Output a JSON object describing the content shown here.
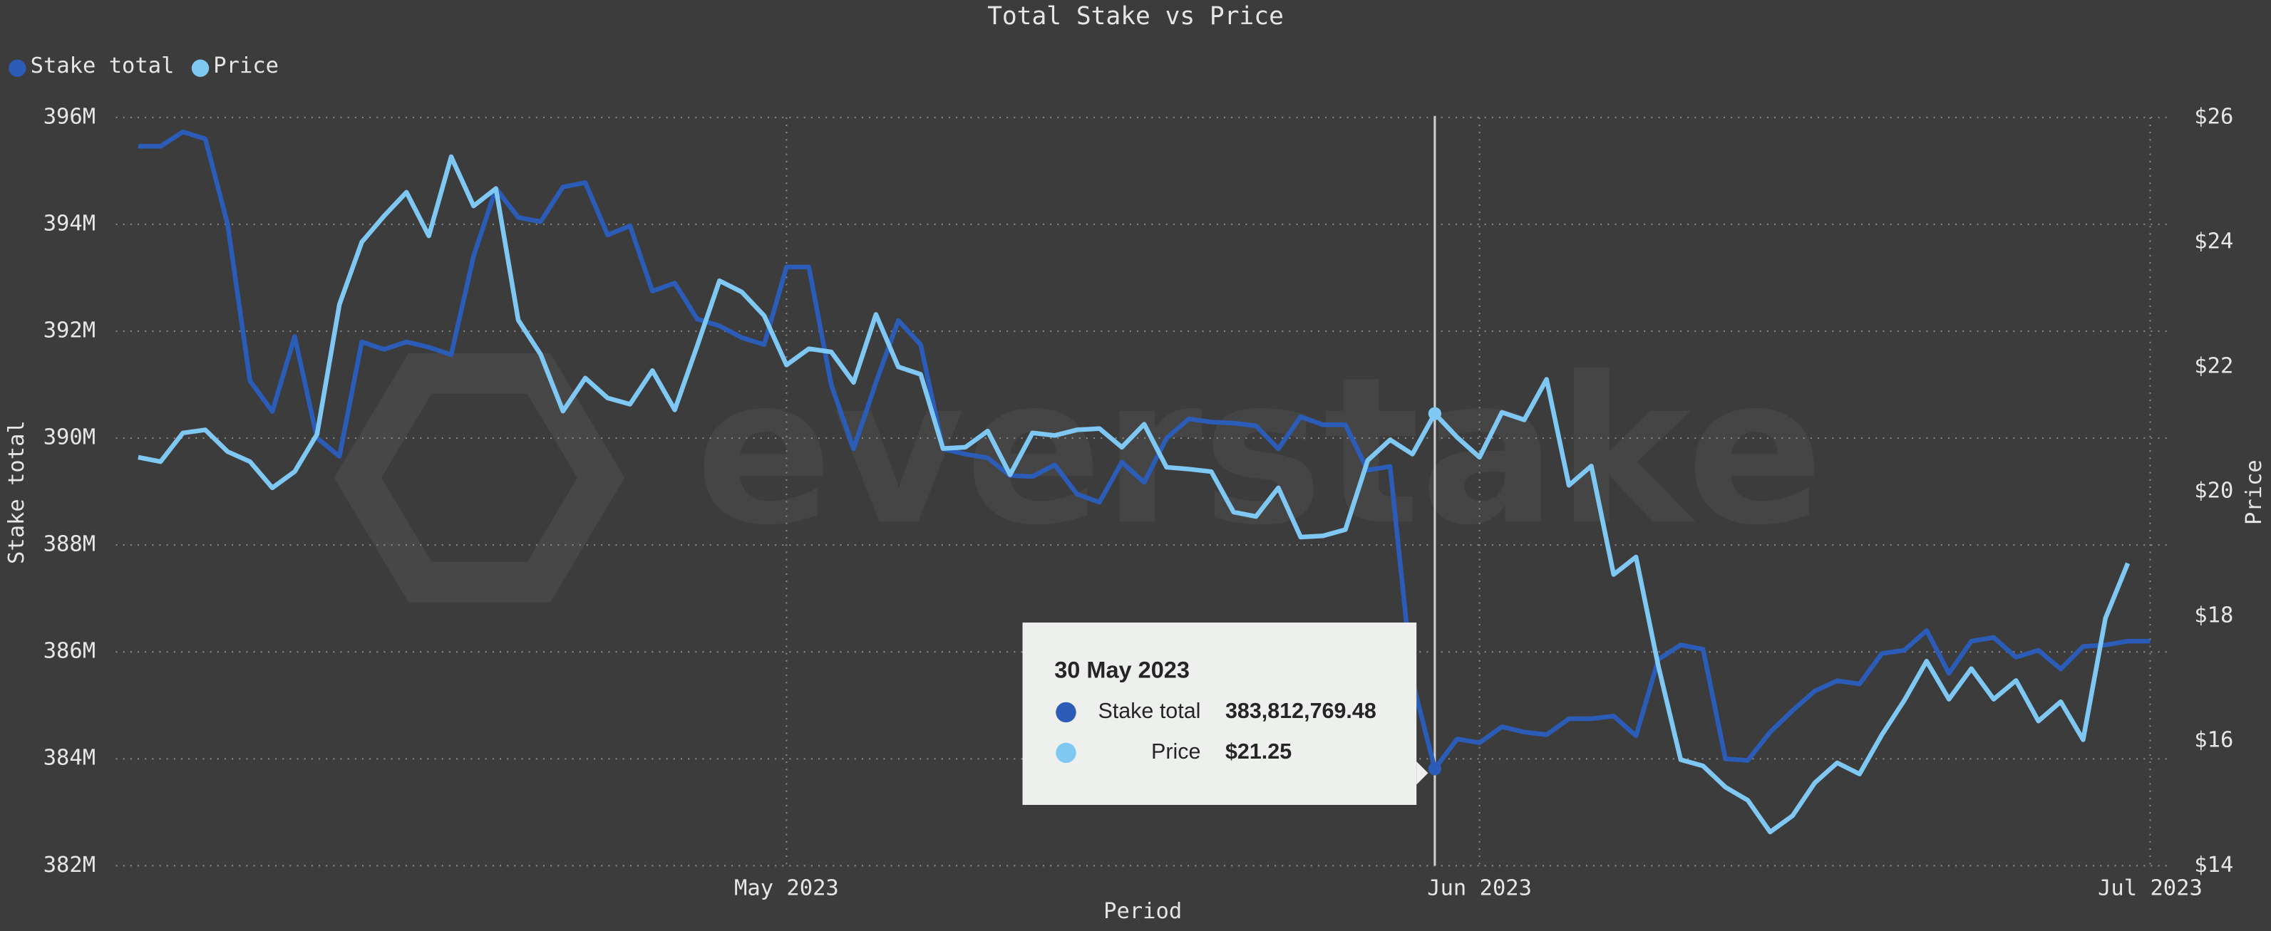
{
  "chart_data": {
    "type": "line",
    "title": "Total Stake vs Price",
    "watermark": "everstake",
    "legend": "top-left",
    "grid": true,
    "xlabel": "Period",
    "ylabel": "Stake total",
    "y2label": "Price",
    "x": [
      "2023-04-02",
      "2023-04-03",
      "2023-04-04",
      "2023-04-05",
      "2023-04-06",
      "2023-04-07",
      "2023-04-08",
      "2023-04-09",
      "2023-04-10",
      "2023-04-11",
      "2023-04-12",
      "2023-04-13",
      "2023-04-14",
      "2023-04-15",
      "2023-04-16",
      "2023-04-17",
      "2023-04-18",
      "2023-04-19",
      "2023-04-20",
      "2023-04-21",
      "2023-04-22",
      "2023-04-23",
      "2023-04-24",
      "2023-04-25",
      "2023-04-26",
      "2023-04-27",
      "2023-04-28",
      "2023-04-29",
      "2023-04-30",
      "2023-05-01",
      "2023-05-02",
      "2023-05-03",
      "2023-05-04",
      "2023-05-05",
      "2023-05-06",
      "2023-05-07",
      "2023-05-08",
      "2023-05-09",
      "2023-05-10",
      "2023-05-11",
      "2023-05-12",
      "2023-05-13",
      "2023-05-14",
      "2023-05-15",
      "2023-05-16",
      "2023-05-17",
      "2023-05-18",
      "2023-05-19",
      "2023-05-20",
      "2023-05-21",
      "2023-05-22",
      "2023-05-23",
      "2023-05-24",
      "2023-05-25",
      "2023-05-26",
      "2023-05-27",
      "2023-05-28",
      "2023-05-29",
      "2023-05-30",
      "2023-05-31",
      "2023-06-01",
      "2023-06-02",
      "2023-06-03",
      "2023-06-04",
      "2023-06-05",
      "2023-06-06",
      "2023-06-07",
      "2023-06-08",
      "2023-06-09",
      "2023-06-10",
      "2023-06-11",
      "2023-06-12",
      "2023-06-13",
      "2023-06-14",
      "2023-06-15",
      "2023-06-16",
      "2023-06-17",
      "2023-06-18",
      "2023-06-19",
      "2023-06-20",
      "2023-06-21",
      "2023-06-22",
      "2023-06-23",
      "2023-06-24",
      "2023-06-25",
      "2023-06-26",
      "2023-06-27",
      "2023-06-28",
      "2023-06-29",
      "2023-06-30",
      "2023-07-01"
    ],
    "xlim": [
      "2023-04-01",
      "2023-07-02"
    ],
    "xticks": [
      {
        "value": "2023-05-01",
        "label": "May 2023"
      },
      {
        "value": "2023-06-01",
        "label": "Jun 2023"
      },
      {
        "value": "2023-07-01",
        "label": "Jul 2023"
      }
    ],
    "ylim": [
      382000000,
      396000000
    ],
    "yticks": [
      {
        "value": 382000000,
        "label": "382M"
      },
      {
        "value": 384000000,
        "label": "384M"
      },
      {
        "value": 386000000,
        "label": "386M"
      },
      {
        "value": 388000000,
        "label": "388M"
      },
      {
        "value": 390000000,
        "label": "390M"
      },
      {
        "value": 392000000,
        "label": "392M"
      },
      {
        "value": 394000000,
        "label": "394M"
      },
      {
        "value": 396000000,
        "label": "396M"
      }
    ],
    "y2lim": [
      14,
      26
    ],
    "y2ticks": [
      {
        "value": 14,
        "label": "$14"
      },
      {
        "value": 16,
        "label": "$16"
      },
      {
        "value": 18,
        "label": "$18"
      },
      {
        "value": 20,
        "label": "$20"
      },
      {
        "value": 22,
        "label": "$22"
      },
      {
        "value": 24,
        "label": "$24"
      },
      {
        "value": 26,
        "label": "$26"
      }
    ],
    "series": [
      {
        "name": "Stake total",
        "color": "#2b5cb8",
        "axis": "y",
        "values": [
          395460000,
          395460000,
          395730000,
          395600000,
          394000000,
          391070000,
          390500000,
          391900000,
          390000000,
          389660000,
          391800000,
          391660000,
          391800000,
          391700000,
          391560000,
          393400000,
          394670000,
          394130000,
          394050000,
          394700000,
          394780000,
          393800000,
          393970000,
          392750000,
          392900000,
          392230000,
          392100000,
          391880000,
          391750000,
          393200000,
          393200000,
          391000000,
          389800000,
          391040000,
          392200000,
          391750000,
          389800000,
          389700000,
          389630000,
          389300000,
          389280000,
          389500000,
          388950000,
          388800000,
          389550000,
          389170000,
          390000000,
          390360000,
          390300000,
          390280000,
          390230000,
          389800000,
          390400000,
          390250000,
          390250000,
          389400000,
          389470000,
          385460000,
          383812769.48,
          384370000,
          384300000,
          384600000,
          384500000,
          384450000,
          384750000,
          384750000,
          384800000,
          384430000,
          385860000,
          386130000,
          386050000,
          384000000,
          383970000,
          384500000,
          384900000,
          385270000,
          385460000,
          385400000,
          385970000,
          386030000,
          386400000,
          385600000,
          386200000,
          386270000,
          385900000,
          386030000,
          385680000,
          386100000,
          386130000,
          386200000,
          386200000
        ]
      },
      {
        "name": "Price",
        "color": "#7ec8f3",
        "axis": "y2",
        "values": [
          20.55,
          20.48,
          20.94,
          20.99,
          20.64,
          20.48,
          20.06,
          20.32,
          20.92,
          23.0,
          24.0,
          24.42,
          24.8,
          24.1,
          25.37,
          24.58,
          24.86,
          22.75,
          22.2,
          21.29,
          21.82,
          21.5,
          21.4,
          21.94,
          21.31,
          22.33,
          23.38,
          23.2,
          22.82,
          22.03,
          22.29,
          22.24,
          21.75,
          22.84,
          22.0,
          21.88,
          20.69,
          20.71,
          20.97,
          20.27,
          20.94,
          20.9,
          20.99,
          21.01,
          20.71,
          21.08,
          20.39,
          20.36,
          20.32,
          19.67,
          19.6,
          20.06,
          19.27,
          19.29,
          19.39,
          20.5,
          20.83,
          20.6,
          21.25,
          20.87,
          20.55,
          21.27,
          21.15,
          21.8,
          20.1,
          20.41,
          18.67,
          18.95,
          17.2,
          15.7,
          15.6,
          15.26,
          15.05,
          14.54,
          14.8,
          15.33,
          15.65,
          15.47,
          16.1,
          16.65,
          17.28,
          16.67,
          17.16,
          16.67,
          16.97,
          16.32,
          16.63,
          16.02,
          17.97,
          18.85,
          null
        ]
      }
    ],
    "tooltip": {
      "index": 58,
      "title": "30 May 2023",
      "labels": [
        "383,812,769.48",
        "$21.25"
      ]
    }
  }
}
